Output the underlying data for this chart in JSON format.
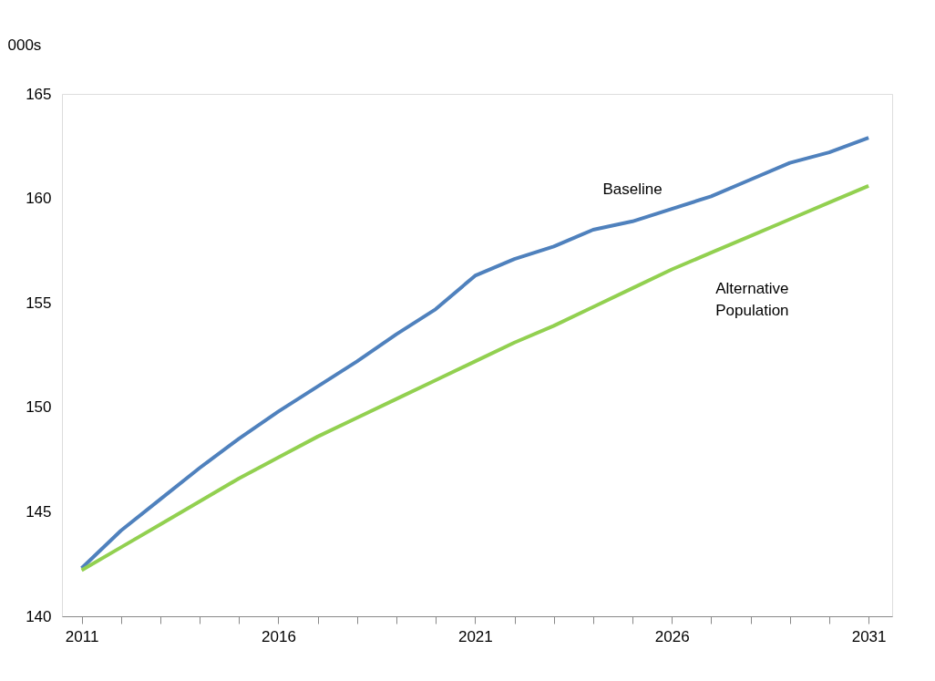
{
  "chart_data": {
    "type": "line",
    "ylabel": "000s",
    "x": [
      2011,
      2012,
      2013,
      2014,
      2015,
      2016,
      2017,
      2018,
      2019,
      2020,
      2021,
      2022,
      2023,
      2024,
      2025,
      2026,
      2027,
      2028,
      2029,
      2030,
      2031
    ],
    "series": [
      {
        "name": "Baseline",
        "color": "#4f81bd",
        "values": [
          142.3,
          144.1,
          145.6,
          147.1,
          148.5,
          149.8,
          151.0,
          152.2,
          153.5,
          154.7,
          156.3,
          157.1,
          157.7,
          158.5,
          158.9,
          159.5,
          160.1,
          160.9,
          161.7,
          162.2,
          162.9
        ]
      },
      {
        "name": "Alternative Population",
        "color": "#92d050",
        "values": [
          142.2,
          143.3,
          144.4,
          145.5,
          146.6,
          147.6,
          148.6,
          149.5,
          150.4,
          151.3,
          152.2,
          153.1,
          153.9,
          154.8,
          155.7,
          156.6,
          157.4,
          158.2,
          159.0,
          159.8,
          160.6
        ]
      }
    ],
    "xlim": [
      2010.5,
      2031.6
    ],
    "xticks": [
      2011,
      {
        "value": 2012,
        "label": null
      },
      {
        "value": 2013,
        "label": null
      },
      {
        "value": 2014,
        "label": null
      },
      {
        "value": 2015,
        "label": null
      },
      2016,
      {
        "value": 2017,
        "label": null
      },
      {
        "value": 2018,
        "label": null
      },
      {
        "value": 2019,
        "label": null
      },
      {
        "value": 2020,
        "label": null
      },
      2021,
      {
        "value": 2022,
        "label": null
      },
      {
        "value": 2023,
        "label": null
      },
      {
        "value": 2024,
        "label": null
      },
      {
        "value": 2025,
        "label": null
      },
      2026,
      {
        "value": 2027,
        "label": null
      },
      {
        "value": 2028,
        "label": null
      },
      {
        "value": 2029,
        "label": null
      },
      {
        "value": 2030,
        "label": null
      },
      2031
    ],
    "ylim": [
      140,
      165
    ],
    "yticks": [
      140,
      145,
      150,
      155,
      160,
      165
    ],
    "marker": "none",
    "line_style": "solid"
  }
}
